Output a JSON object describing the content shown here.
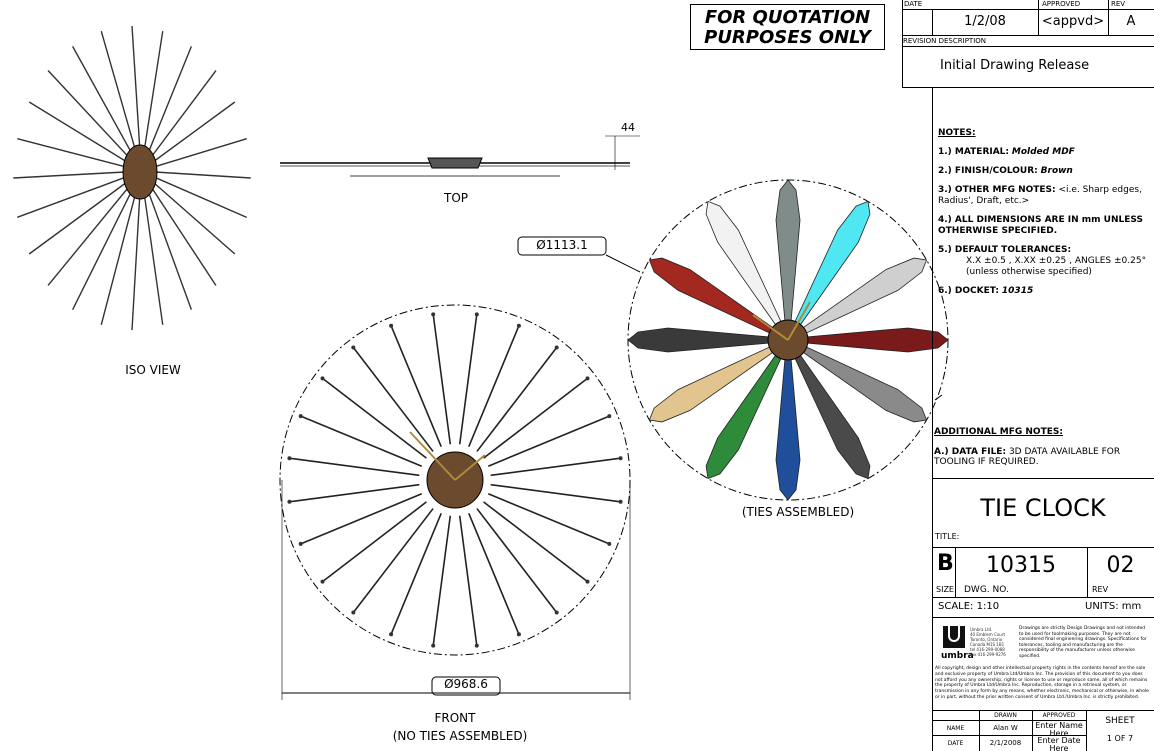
{
  "stamp": "FOR QUOTATION PURPOSES ONLY",
  "revision_block": {
    "headers": {
      "date": "DATE",
      "approved": "APPROVED",
      "rev": "REV"
    },
    "date": "1/2/08",
    "approved": "<appvd>",
    "rev": "A",
    "description_header": "REVISION DESCRIPTION",
    "description": "Initial Drawing Release"
  },
  "notes": {
    "title": "NOTES:",
    "items": [
      {
        "label": "1.) MATERIAL:",
        "value": "Molded MDF"
      },
      {
        "label": "2.) FINISH/COLOUR:",
        "value": "Brown"
      },
      {
        "label": "3.) OTHER MFG NOTES:",
        "value": "<i.e. Sharp edges, Radius', Draft, etc.>"
      },
      {
        "label": "4.) ALL DIMENSIONS ARE IN mm UNLESS OTHERWISE SPECIFIED.",
        "value": ""
      },
      {
        "label": "5.) DEFAULT TOLERANCES:",
        "value": "X.X ±0.5 ,  X.XX ±0.25 ,  ANGLES ±0.25°",
        "value2": "(unless otherwise specified)"
      },
      {
        "label": "6.) DOCKET:",
        "value": "10315"
      }
    ],
    "additional_title": "ADDITIONAL MFG NOTES:",
    "additional_label": "A.) DATA FILE:",
    "additional_value": "3D DATA AVAILABLE FOR TOOLING IF REQUIRED."
  },
  "title_block": {
    "title": "TIE CLOCK",
    "title_label": "TITLE:",
    "size": "B",
    "size_label": "SIZE",
    "dwg_no": "10315",
    "dwg_no_label": "DWG. NO.",
    "rev": "02",
    "rev_label": "REV",
    "scale": "SCALE: 1:10",
    "units": "UNITS: mm",
    "company": {
      "logo_text": "umbra",
      "address": [
        "Umbra Ltd.",
        "40 Emblem Court",
        "Toronto, Ontario",
        "Canada M1S 1B1",
        "tel 416-299-0088",
        "fax 416-299-9276"
      ],
      "disclaimer": "Drawings are strictly Design Drawings and not intended to be used for toolmaking purposes. They are not considered final engineering drawings. Specifications for tolerances, tooling and manufacturing are the responsibility of the manufacturer unless otherwise specified.",
      "copyright": "All copyright, design and other intellectual property rights in the contents hereof are the sole and exclusive property of Umbra Ltd/Umbra Inc. The provision of this document to you does not afford you any ownership, rights or license to use or reproduce same, all of which remains the property of Umbra Ltd/Umbra Inc. Reproduction, storage in a retrieval system, or transmission in any form by any means, whether electronic, mechanical or otherwise, in whole or in part, without the prior written consent of Umbra Ltd./Umbra Inc. is strictly prohibited."
    },
    "signoff": {
      "drawn_header": "DRAWN",
      "approved_header": "APPROVED",
      "name_label": "NAME",
      "date_label": "DATE",
      "drawn_name": "Alan W",
      "drawn_date": "2/1/2008",
      "approved_name": "Enter Name Here",
      "approved_date": "Enter Date Here",
      "sheet_label": "SHEET",
      "sheet_value": "1 OF 7"
    }
  },
  "views": {
    "iso": "ISO VIEW",
    "top": "TOP",
    "top_dim": "44",
    "front": "FRONT",
    "front_note": "(NO TIES ASSEMBLED)",
    "front_dim": "Ø968.6",
    "ties": "(TIES ASSEMBLED)",
    "ties_dim": "Ø1113.1"
  },
  "colors": {
    "hub": "#6b4a2e",
    "ties": [
      "#7f8c8a",
      "#4fe8f2",
      "#cfcfcf",
      "#7a1a1a",
      "#8a8a8a",
      "#4a4a4a",
      "#1f4e9a",
      "#2e8b3a",
      "#e2c48e",
      "#3a3a3a",
      "#a3281f",
      "#f2f2f2"
    ]
  }
}
